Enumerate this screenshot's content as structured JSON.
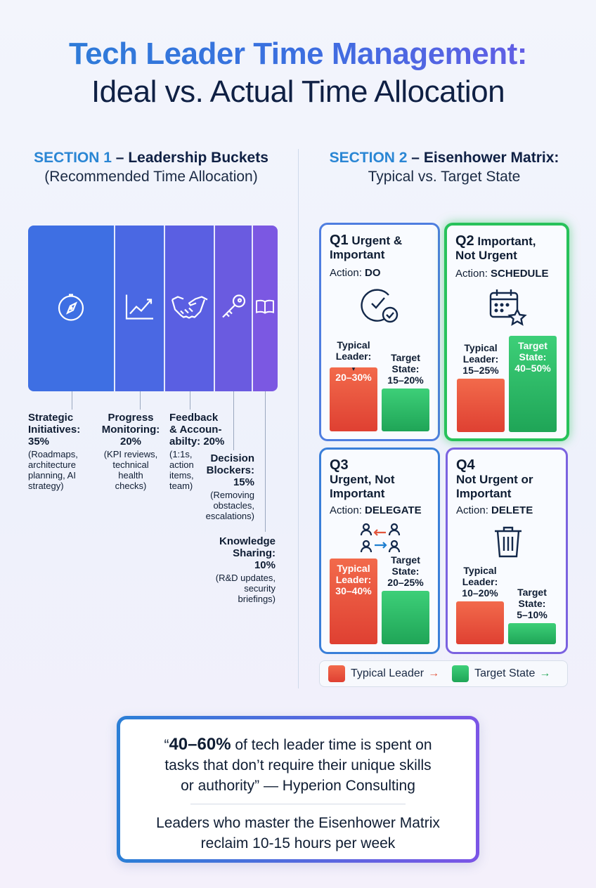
{
  "header": {
    "title_line1": "Tech Leader Time Management:",
    "title_line2": "Ideal vs. Actual Time Allocation"
  },
  "section1": {
    "num": "SECTION 1",
    "dash": " – ",
    "title": "Leadership Buckets",
    "subtitle": "(Recommended Time Allocation)"
  },
  "section2": {
    "num": "SECTION 2",
    "dash": " – ",
    "title": "Eisenhower Matrix:",
    "subtitle": "Typical vs. Target State"
  },
  "chart_data": [
    {
      "type": "bar",
      "orientation": "horizontal-stacked-100",
      "categories": [
        "Strategic Initiatives",
        "Progress Monitoring",
        "Feedback & Accountability",
        "Decision Blockers",
        "Knowledge Sharing"
      ],
      "values": [
        35,
        20,
        20,
        15,
        10
      ],
      "colors": [
        "#3e6fe3",
        "#4a68e3",
        "#5a5fe2",
        "#6a5be0",
        "#7b58e2"
      ],
      "icons": [
        "compass-icon",
        "chart-line-icon",
        "handshake-icon",
        "key-icon",
        "book-icon"
      ],
      "labels": [
        {
          "name_lines": [
            "Strategic",
            "Initiatives:",
            "35%"
          ],
          "desc_lines": [
            "(Roadmaps,",
            "architecture",
            "planning, AI",
            "strategy)"
          ]
        },
        {
          "name_lines": [
            "Progress",
            "Monitoring:",
            "20%"
          ],
          "desc_lines": [
            "(KPI reviews,",
            "technical",
            "health",
            "checks)"
          ]
        },
        {
          "name_lines": [
            "Feedback",
            "& Accoun-",
            "abilty: 20%"
          ],
          "desc_lines": [
            "(1:1s,",
            "action",
            "items,",
            "team)"
          ]
        },
        {
          "name_lines": [
            "Decision",
            "Blockers:",
            "15%"
          ],
          "desc_lines": [
            "(Removing",
            "obstacles,",
            "escalations)"
          ]
        },
        {
          "name_lines": [
            "Knowledge",
            "Sharing:",
            "10%"
          ],
          "desc_lines": [
            "(R&D updates,",
            "security",
            "briefings)"
          ]
        }
      ]
    },
    {
      "type": "bar",
      "layout": "2x2-matrix",
      "series": [
        {
          "name": "Typical Leader",
          "color": "#e54a36"
        },
        {
          "name": "Target State",
          "color": "#2bb862"
        }
      ],
      "quadrants": [
        {
          "id": "Q1",
          "title": " Urgent &",
          "title2": "Important",
          "action_label": "Action: ",
          "action": "DO",
          "icon": "clock-check-icon",
          "typical": {
            "range": "20–30%",
            "low": 20,
            "high": 30,
            "label_lines": [
              "Typical",
              "Leader:"
            ]
          },
          "target": {
            "range": "15–20%",
            "low": 15,
            "high": 20,
            "label_lines": [
              "Target",
              "State:",
              "15–20%"
            ]
          }
        },
        {
          "id": "Q2",
          "title": " Important,",
          "title2": "Not Urgent",
          "action_label": "Action: ",
          "action": "SCHEDULE",
          "icon": "calendar-star-icon",
          "typical": {
            "range": "15–25%",
            "low": 15,
            "high": 25,
            "label_lines": [
              "Typical",
              "Leader:",
              "15–25%"
            ]
          },
          "target": {
            "range": "40–50%",
            "low": 40,
            "high": 50,
            "label_lines": [
              "Target",
              "State:",
              "40–50%"
            ]
          }
        },
        {
          "id": "Q3",
          "title": "",
          "title2": "Urgent, Not",
          "title3": "Important",
          "action_label": "Action: ",
          "action": "DELEGATE",
          "icon": "delegate-people-icon",
          "typical": {
            "range": "30–40%",
            "low": 30,
            "high": 40,
            "label_lines": [
              "Typical",
              "Leader:",
              "30–40%"
            ]
          },
          "target": {
            "range": "20–25%",
            "low": 20,
            "high": 25,
            "label_lines": [
              "Target",
              "State:",
              "20–25%"
            ]
          }
        },
        {
          "id": "Q4",
          "title": "",
          "title2": "Not Urgent or",
          "title3": "Important",
          "action_label": "Action: ",
          "action": "DELETE",
          "icon": "trash-icon",
          "typical": {
            "range": "10–20%",
            "low": 10,
            "high": 20,
            "label_lines": [
              "Typical",
              "Leader:",
              "10–20%"
            ]
          },
          "target": {
            "range": "5–10%",
            "low": 5,
            "high": 10,
            "label_lines": [
              "Target",
              "State:",
              "5–10%"
            ]
          }
        }
      ]
    }
  ],
  "legend": {
    "typical_label": "Typical Leader",
    "target_label": "Target State",
    "arrow": "→"
  },
  "quote": {
    "bold": "40–60%",
    "open_mark": "“",
    "line1_rest": " of tech leader time is spent on",
    "line2": "tasks that don’t require their unique skills",
    "line3": "or authority” — Hyperion Consulting",
    "line4": "Leaders who master the Eisenhower Matrix",
    "line5": "reclaim 10-15 hours per week"
  }
}
